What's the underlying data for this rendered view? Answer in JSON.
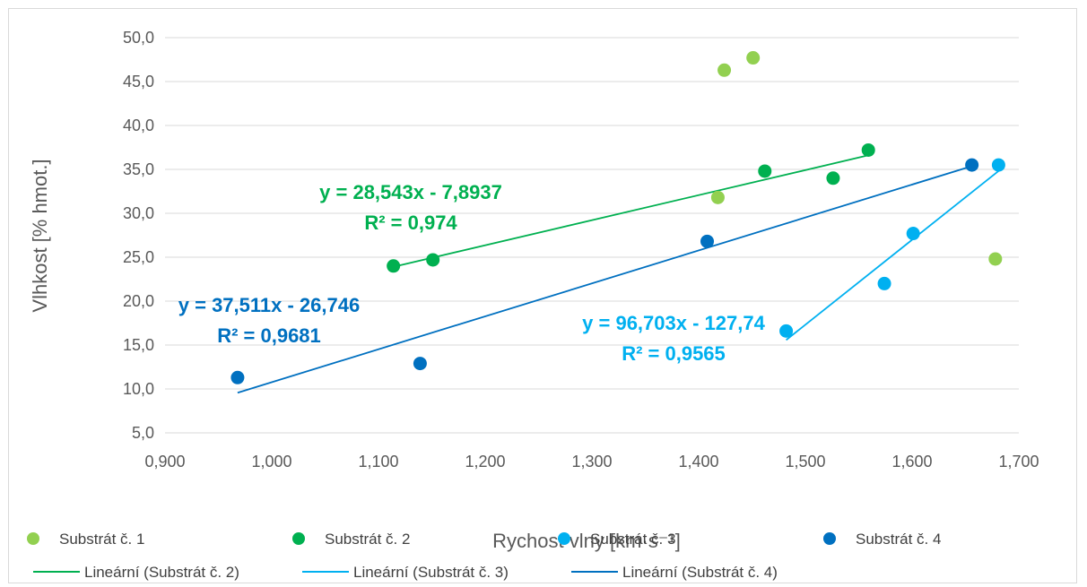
{
  "chart_data": {
    "type": "scatter",
    "xlabel": "Rychost vlny [km·s⁻¹]",
    "ylabel": "Vlhkost [% hmot.]",
    "xlim": [
      0.9,
      1.7
    ],
    "ylim": [
      5.0,
      50.0
    ],
    "x_ticks": [
      "0,900",
      "1,000",
      "1,100",
      "1,200",
      "1,300",
      "1,400",
      "1,500",
      "1,600",
      "1,700"
    ],
    "y_ticks": [
      "5,0",
      "10,0",
      "15,0",
      "20,0",
      "25,0",
      "30,0",
      "35,0",
      "40,0",
      "45,0",
      "50,0"
    ],
    "grid": "horizontal",
    "legend_position": "bottom",
    "series": [
      {
        "name": "Substrát č. 1",
        "color": "#92d050",
        "points": [
          [
            1.418,
            31.8
          ],
          [
            1.424,
            46.3
          ],
          [
            1.451,
            47.7
          ],
          [
            1.678,
            24.8
          ]
        ]
      },
      {
        "name": "Substrát č. 2",
        "color": "#00b050",
        "points": [
          [
            1.114,
            24.0
          ],
          [
            1.151,
            24.7
          ],
          [
            1.462,
            34.8
          ],
          [
            1.526,
            34.0
          ],
          [
            1.559,
            37.2
          ]
        ]
      },
      {
        "name": "Substrát č. 3",
        "color": "#00b0f0",
        "points": [
          [
            1.482,
            16.6
          ],
          [
            1.574,
            22.0
          ],
          [
            1.601,
            27.7
          ],
          [
            1.681,
            35.5
          ]
        ]
      },
      {
        "name": "Substrát č. 4",
        "color": "#0070c0",
        "points": [
          [
            0.968,
            11.3
          ],
          [
            1.139,
            12.9
          ],
          [
            1.408,
            26.8
          ],
          [
            1.656,
            35.5
          ]
        ]
      }
    ],
    "trendlines": [
      {
        "name": "Lineární (Substrát č. 2)",
        "color": "#00b050",
        "x_range": [
          1.114,
          1.559
        ],
        "slope": 28.543,
        "intercept": -7.8937,
        "equation": "y = 28,543x - 7,8937",
        "r2": "R² = 0,974"
      },
      {
        "name": "Lineární (Substrát č. 3)",
        "color": "#00b0f0",
        "x_range": [
          1.482,
          1.681
        ],
        "slope": 96.703,
        "intercept": -127.74,
        "equation": "y = 96,703x - 127,74",
        "r2": "R² = 0,9565"
      },
      {
        "name": "Lineární (Substrát č. 4)",
        "color": "#0070c0",
        "x_range": [
          0.968,
          1.656
        ],
        "slope": 37.511,
        "intercept": -26.746,
        "equation": "y = 37,511x - 26,746",
        "r2": "R² = 0,9681"
      }
    ]
  }
}
